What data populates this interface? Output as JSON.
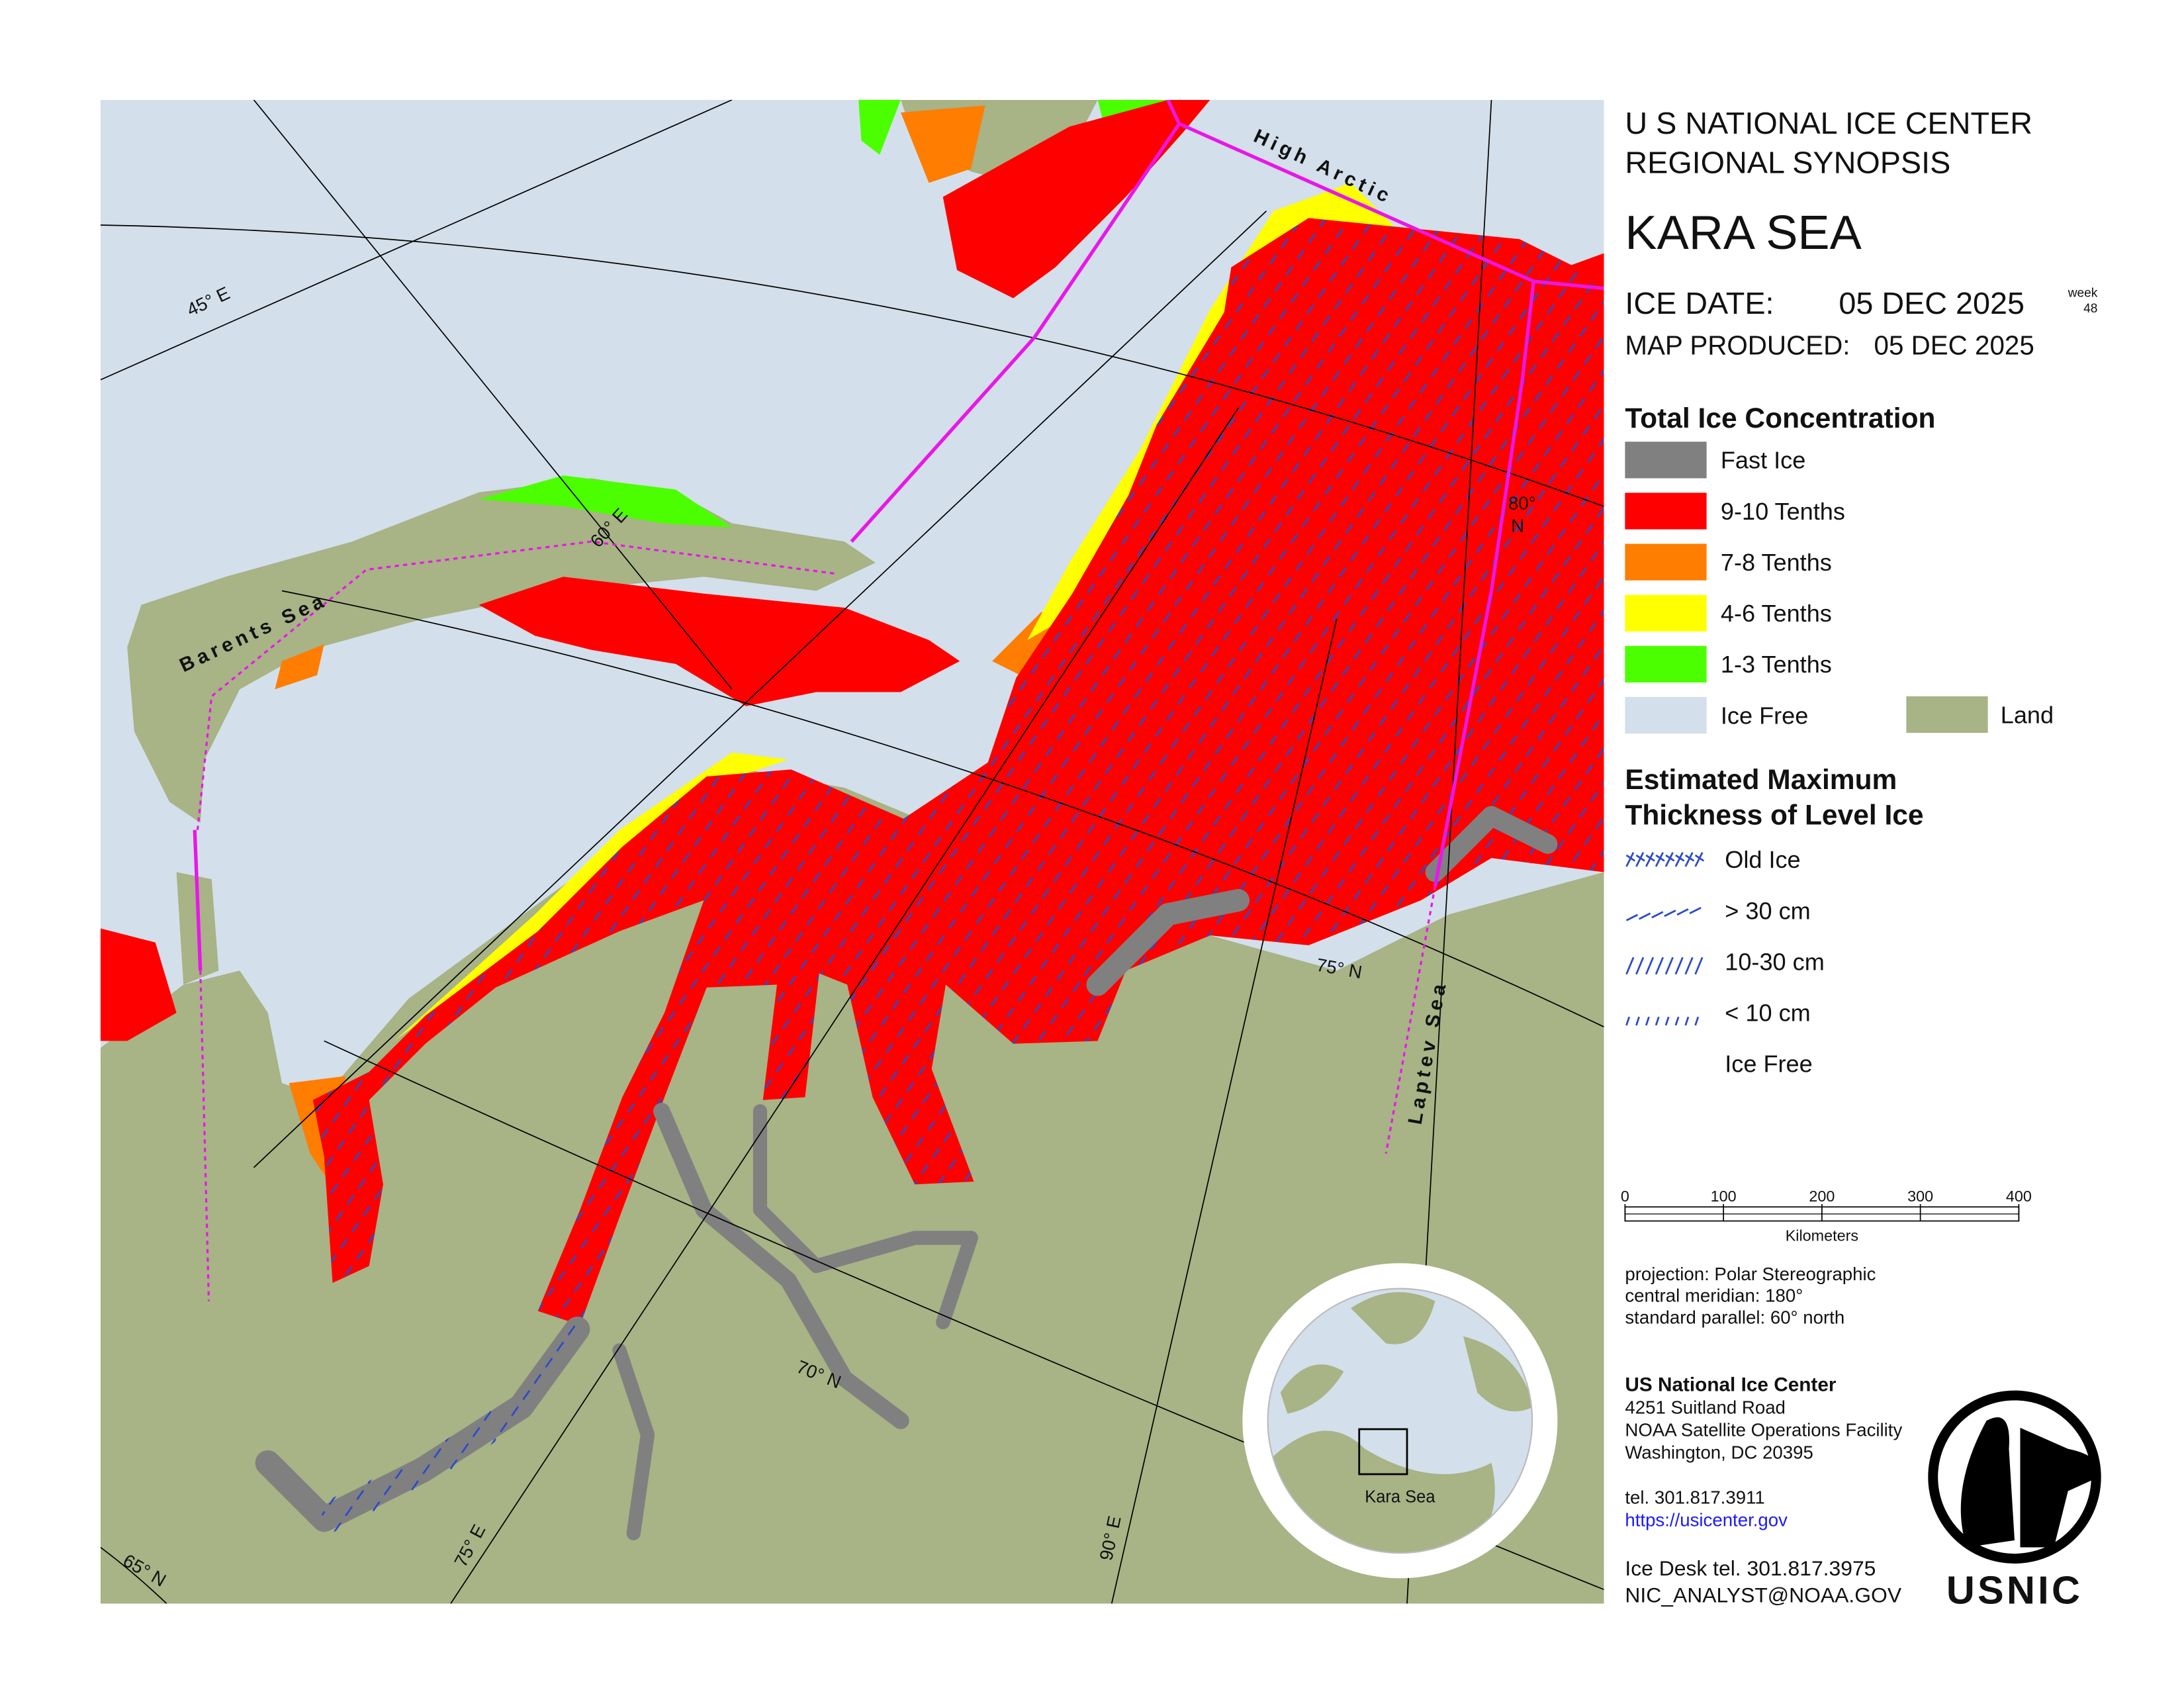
{
  "header": {
    "line1": "U S NATIONAL ICE CENTER",
    "line2": "REGIONAL SYNOPSIS",
    "region": "KARA SEA",
    "ice_date_label": "ICE DATE:",
    "ice_date": "05 DEC 2025",
    "week_label": "week",
    "week": 48,
    "produced_label": "MAP PRODUCED:",
    "produced_date": "05 DEC 2025"
  },
  "concentration_legend": {
    "title": "Total Ice Concentration",
    "items": [
      {
        "label": "Fast Ice",
        "color": "#808080"
      },
      {
        "label": "9-10 Tenths",
        "color": "#ff0000"
      },
      {
        "label": "7-8 Tenths",
        "color": "#ff7d00"
      },
      {
        "label": "4-6 Tenths",
        "color": "#ffff00"
      },
      {
        "label": "1-3 Tenths",
        "color": "#4cff00"
      },
      {
        "label": "Ice Free",
        "color": "#d3dfea"
      }
    ],
    "land": {
      "label": "Land",
      "color": "#a8b386"
    }
  },
  "thickness_legend": {
    "title_lines": [
      "Estimated Maximum",
      "Thickness of Level Ice"
    ],
    "items": [
      "Old Ice",
      "> 30 cm",
      "10-30 cm",
      "< 10 cm",
      "Ice Free"
    ]
  },
  "scale_bar": {
    "ticks": [
      0,
      100,
      200,
      300,
      400
    ],
    "unit": "Kilometers"
  },
  "projection": [
    "projection: Polar Stereographic",
    "central meridian: 180°",
    "standard parallel:  60° north"
  ],
  "contact": {
    "name": "US National Ice Center",
    "address": [
      "4251 Suitland Road",
      "NOAA Satellite Operations Facility",
      "Washington, DC  20395"
    ],
    "phone": "tel. 301.817.3911",
    "url": "https://usicenter.gov",
    "ice_desk": "Ice Desk tel. 301.817.3975",
    "email": "NIC_ANALYST@NOAA.GOV"
  },
  "map_labels": {
    "meridians": [
      "45° E",
      "60° E",
      "75° E",
      "90° E"
    ],
    "parallels": [
      "65° N",
      "70° N",
      "75° N"
    ],
    "parallel_80": [
      "80°",
      "N"
    ],
    "seas": [
      "Barents Sea",
      "High Arctic",
      "Laptev Sea"
    ]
  },
  "inset": {
    "label": "Kara Sea"
  },
  "logo": "USNIC"
}
